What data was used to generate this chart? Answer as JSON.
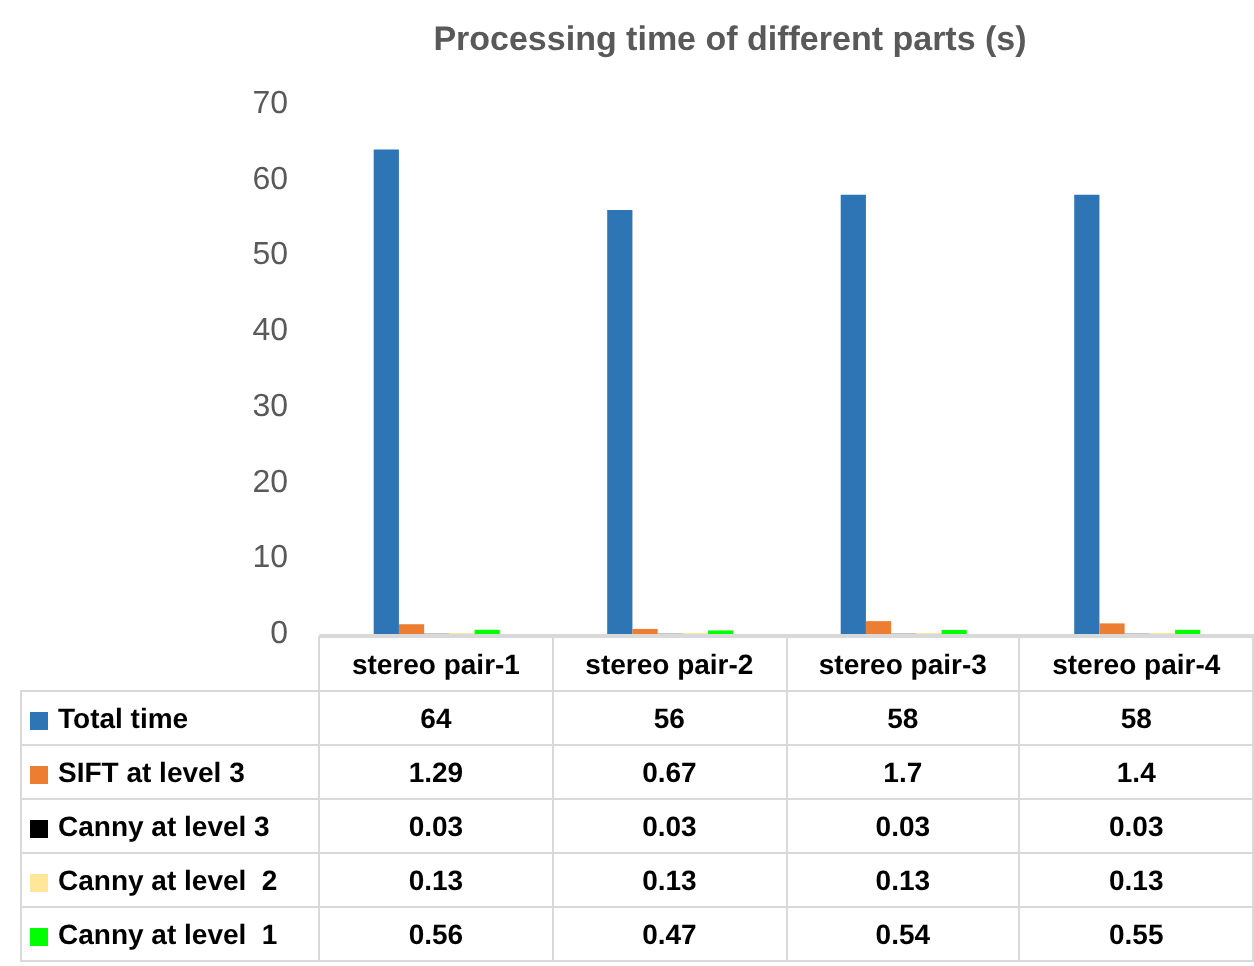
{
  "chart_data": {
    "type": "bar",
    "title": "Processing time of different parts (s)",
    "categories": [
      "stereo pair-1",
      "stereo pair-2",
      "stereo pair-3",
      "stereo pair-4"
    ],
    "series": [
      {
        "name": "Total time",
        "color": "#2e75b6",
        "values": [
          64,
          56,
          58,
          58
        ]
      },
      {
        "name": "SIFT at level 3",
        "color": "#ed7d31",
        "values": [
          1.29,
          0.67,
          1.7,
          1.4
        ]
      },
      {
        "name": "Canny at level 3",
        "color": "#000000",
        "values": [
          0.03,
          0.03,
          0.03,
          0.03
        ]
      },
      {
        "name": "Canny at level  2",
        "color": "#ffe699",
        "values": [
          0.13,
          0.13,
          0.13,
          0.13
        ]
      },
      {
        "name": "Canny at level  1",
        "color": "#00ff00",
        "values": [
          0.56,
          0.47,
          0.54,
          0.55
        ]
      }
    ],
    "ylim": [
      0,
      70
    ],
    "yticks": [
      0,
      10,
      20,
      30,
      40,
      50,
      60,
      70
    ],
    "grid": false,
    "legend": "bottom",
    "data_labels": true
  }
}
